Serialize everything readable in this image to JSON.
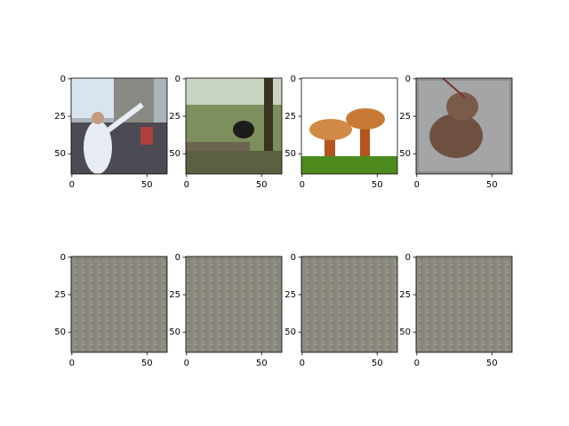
{
  "chart_data": [
    {
      "type": "image",
      "xlim": [
        -0.5,
        63.5
      ],
      "ylim": [
        63.5,
        -0.5
      ],
      "xticks": [
        0,
        50
      ],
      "yticks": [
        0,
        25,
        50
      ]
    },
    {
      "type": "image",
      "xlim": [
        -0.5,
        63.5
      ],
      "ylim": [
        63.5,
        -0.5
      ],
      "xticks": [
        0,
        50
      ],
      "yticks": [
        0,
        25,
        50
      ]
    },
    {
      "type": "image",
      "xlim": [
        -0.5,
        63.5
      ],
      "ylim": [
        63.5,
        -0.5
      ],
      "xticks": [
        0,
        50
      ],
      "yticks": [
        0,
        25,
        50
      ]
    },
    {
      "type": "image",
      "xlim": [
        -0.5,
        63.5
      ],
      "ylim": [
        63.5,
        -0.5
      ],
      "xticks": [
        0,
        50
      ],
      "yticks": [
        0,
        25,
        50
      ]
    },
    {
      "type": "image",
      "xlim": [
        -0.5,
        63.5
      ],
      "ylim": [
        63.5,
        -0.5
      ],
      "xticks": [
        0,
        50
      ],
      "yticks": [
        0,
        25,
        50
      ]
    },
    {
      "type": "image",
      "xlim": [
        -0.5,
        63.5
      ],
      "ylim": [
        63.5,
        -0.5
      ],
      "xticks": [
        0,
        50
      ],
      "yticks": [
        0,
        25,
        50
      ]
    },
    {
      "type": "image",
      "xlim": [
        -0.5,
        63.5
      ],
      "ylim": [
        63.5,
        -0.5
      ],
      "xticks": [
        0,
        50
      ],
      "yticks": [
        0,
        25,
        50
      ]
    },
    {
      "type": "image",
      "xlim": [
        -0.5,
        63.5
      ],
      "ylim": [
        63.5,
        -0.5
      ],
      "xticks": [
        0,
        50
      ],
      "yticks": [
        0,
        25,
        50
      ]
    }
  ]
}
